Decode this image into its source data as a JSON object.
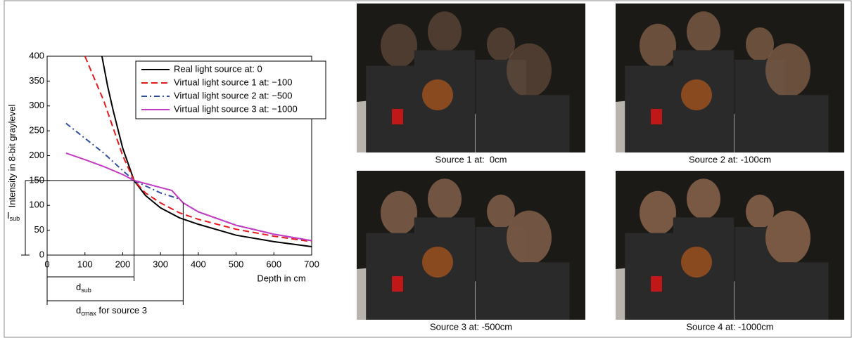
{
  "chart_data": {
    "type": "line",
    "ylabel": "Intensity in 8-bit graylevel",
    "xlabel": "Depth in cm",
    "xlim": [
      0,
      700
    ],
    "xticks": [
      0,
      100,
      200,
      300,
      400,
      500,
      600,
      700
    ],
    "ylim": [
      0,
      400
    ],
    "yticks": [
      0,
      50,
      100,
      150,
      200,
      250,
      300,
      350,
      400
    ],
    "legend": "upper right",
    "series": [
      {
        "name": "Real light source at: 0",
        "color": "#000000",
        "dash": "solid",
        "x": [
          145,
          160,
          175,
          200,
          230,
          260,
          300,
          350,
          400,
          500,
          600,
          700
        ],
        "values": [
          400,
          340,
          290,
          215,
          150,
          120,
          95,
          75,
          62,
          40,
          27,
          17
        ]
      },
      {
        "name": "Virtual light source 1 at: −100",
        "color": "#e41a1c",
        "dash": "dashed",
        "x": [
          100,
          125,
          150,
          175,
          200,
          230,
          260,
          300,
          350,
          400,
          500,
          600,
          700
        ],
        "values": [
          400,
          355,
          310,
          255,
          200,
          150,
          125,
          105,
          85,
          72,
          52,
          38,
          27
        ]
      },
      {
        "name": "Virtual light source 2 at: −500",
        "color": "#2e4fa0",
        "dash": "dashdot",
        "x": [
          50,
          100,
          150,
          200,
          230,
          300,
          350,
          360,
          400,
          500,
          600,
          700
        ],
        "values": [
          265,
          235,
          205,
          170,
          150,
          125,
          113,
          105,
          87,
          60,
          42,
          29
        ]
      },
      {
        "name": "Virtual light source 3 at: −1000",
        "color": "#c23bc2",
        "dash": "solid",
        "x": [
          50,
          100,
          150,
          200,
          230,
          300,
          330,
          360,
          400,
          500,
          600,
          700
        ],
        "values": [
          205,
          192,
          178,
          162,
          150,
          136,
          130,
          105,
          87,
          60,
          42,
          29
        ]
      }
    ],
    "annotations": [
      {
        "label": "I",
        "sub": "sub",
        "value": 150
      },
      {
        "label": "d",
        "sub": "sub",
        "value": 230
      },
      {
        "label": "d",
        "sub": "cmax",
        "suffix": " for source 3",
        "value": 360
      }
    ]
  },
  "captions": [
    "Source 1 at:  0cm",
    "Source 2 at: -100cm",
    "Source 3 at: -500cm",
    "Source 4 at: -1000cm"
  ]
}
